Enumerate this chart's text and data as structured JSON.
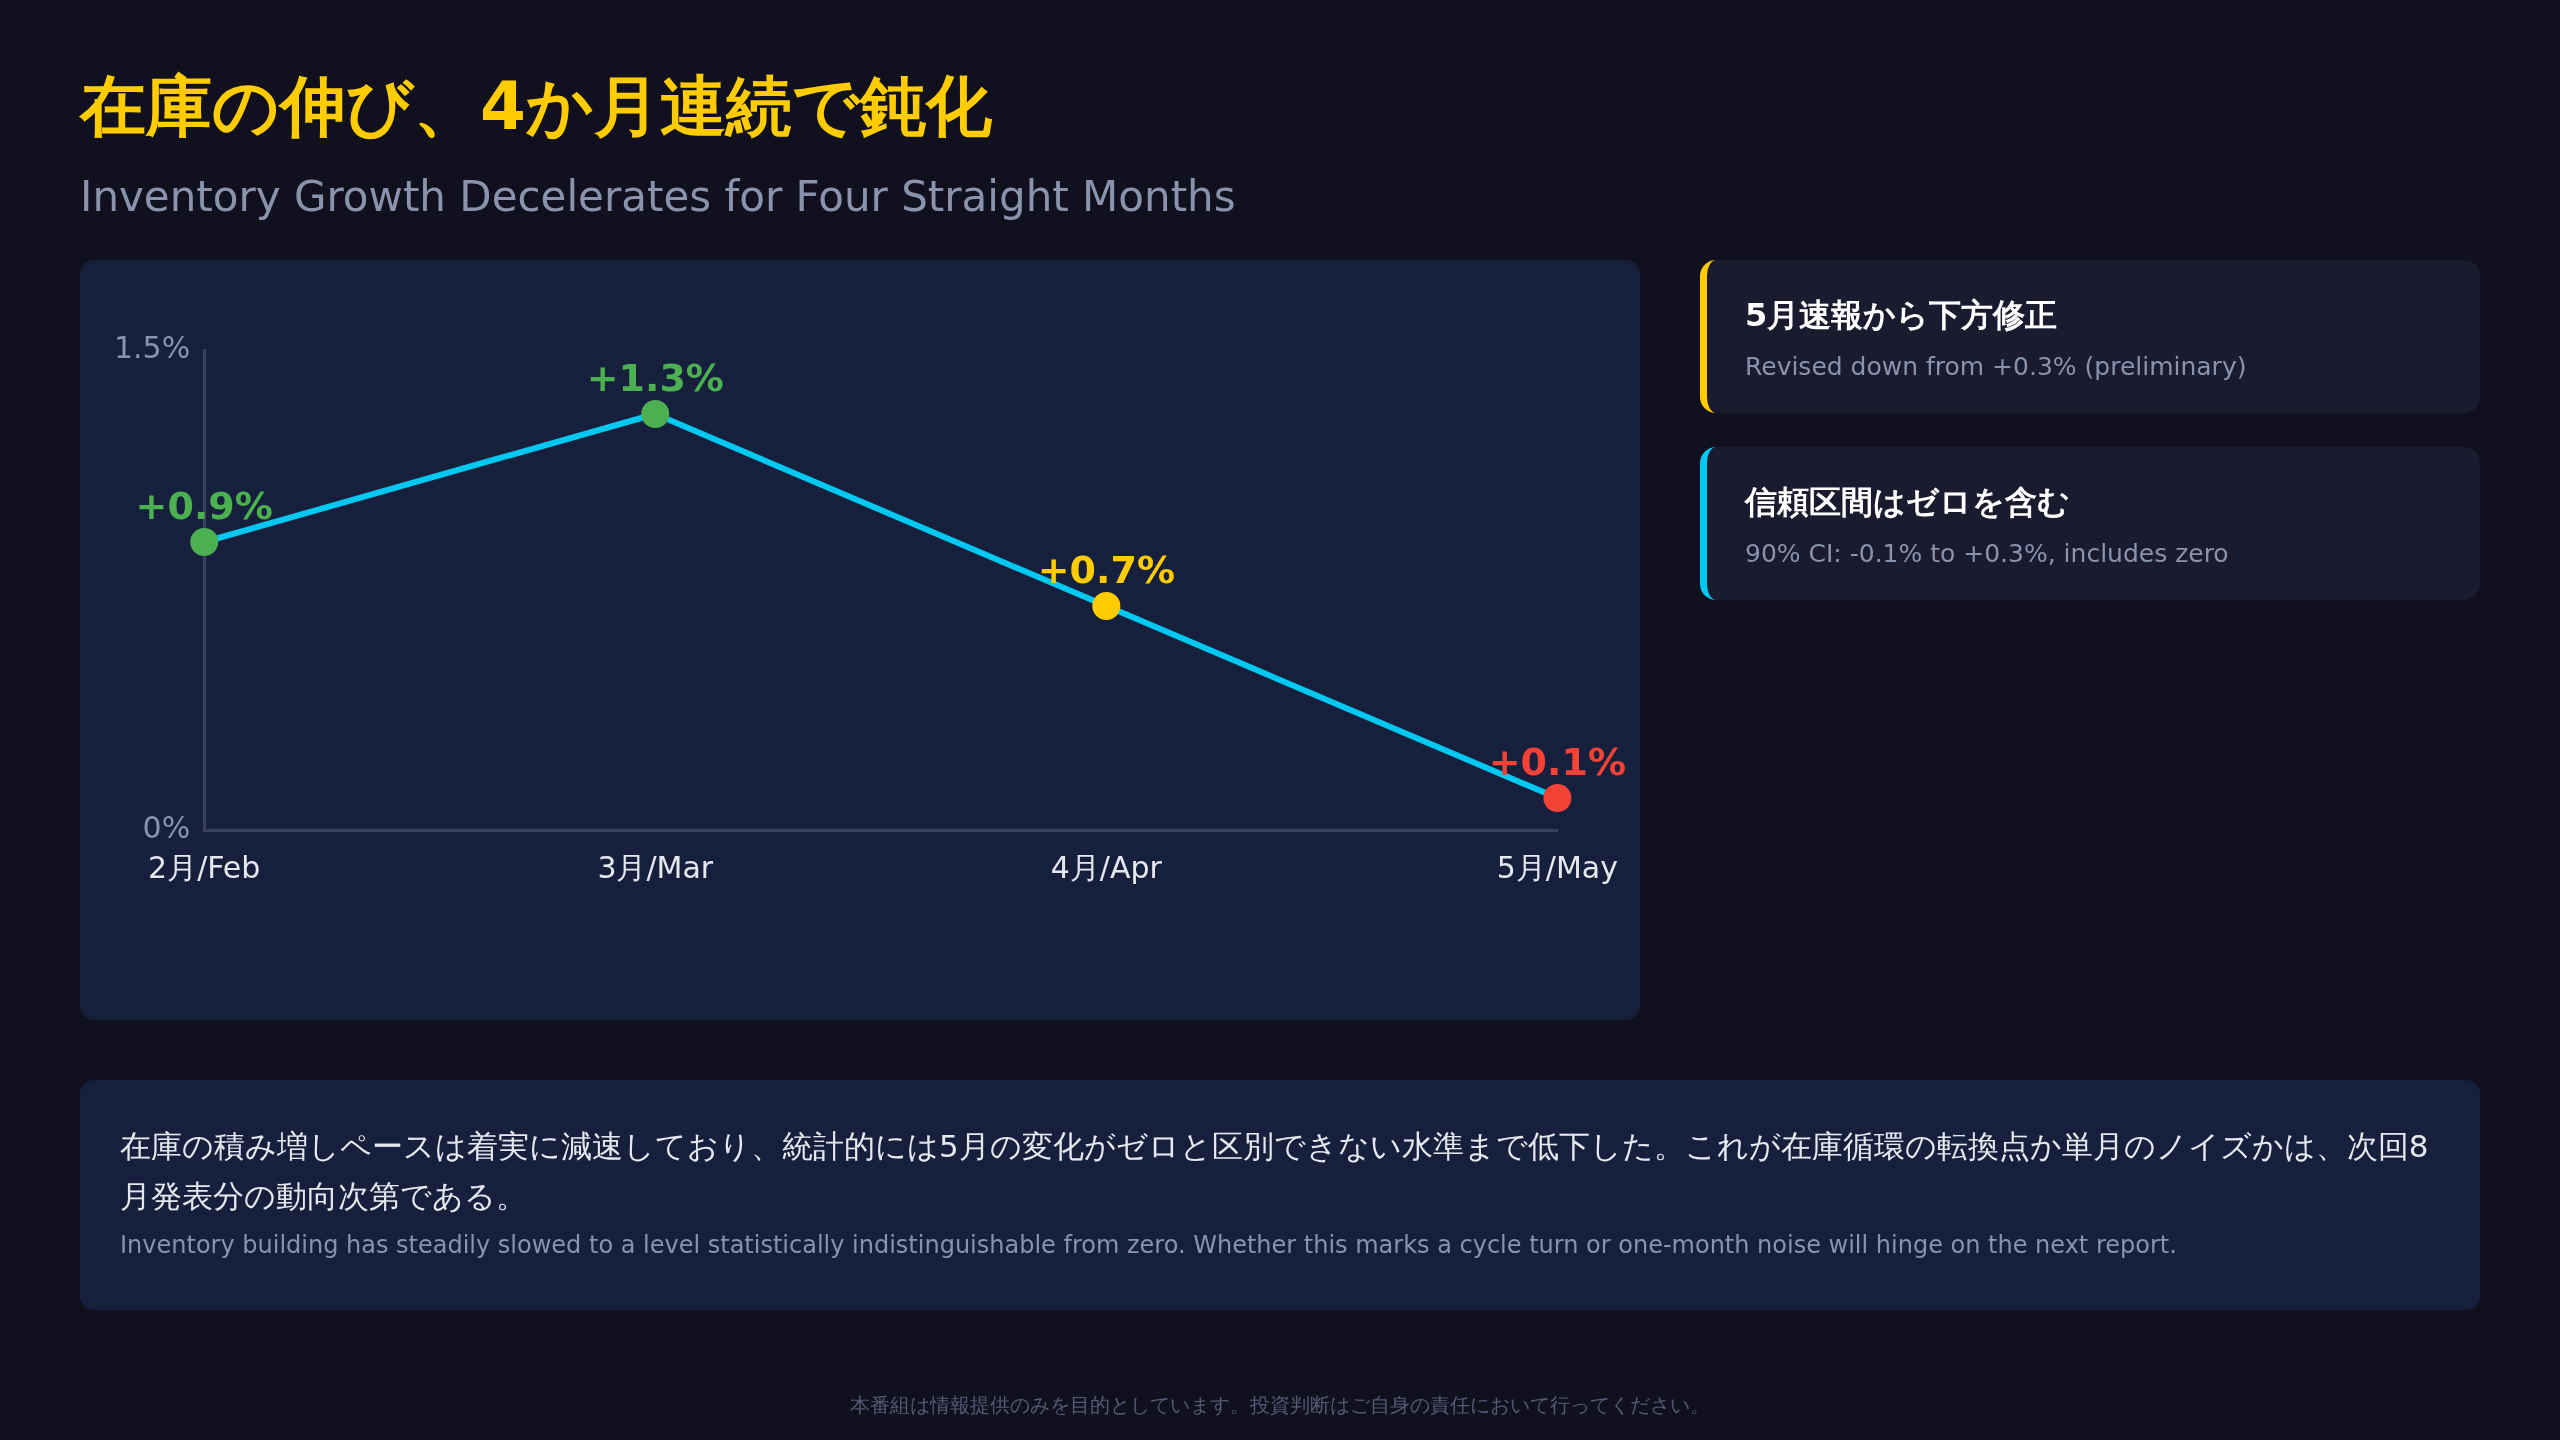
{
  "chart_data": {
    "type": "line",
    "title": "在庫の伸び、4か月連続で鈍化",
    "subtitle": "Inventory Growth Decelerates for Four Straight Months",
    "categories": [
      "2月/Feb",
      "3月/Mar",
      "4月/Apr",
      "5月/May"
    ],
    "series": [
      {
        "color": "#00c8f0",
        "colors": [
          "#4caf50",
          "#4caf50",
          "#ffcc00",
          "#f44336"
        ],
        "values": [
          0.9,
          1.3,
          0.7,
          0.1
        ],
        "value_labels": [
          "+0.9%",
          "+1.3%",
          "+0.7%",
          "+0.1%"
        ]
      }
    ],
    "ylim": [
      0,
      1.5
    ],
    "yticks": [
      {
        "value": 0,
        "label": "0%"
      },
      {
        "value": 1.5,
        "label": "1.5%"
      }
    ],
    "grid": false,
    "legend": false,
    "marker": "circle",
    "line_style": "solid",
    "annotations": [
      "5月速報から下方修正",
      "Revised down from +0.3% (preliminary)",
      "信頼区間はゼロを含む",
      "90% CI: -0.1% to +0.3%, includes zero",
      "在庫の積み増しペースは着実に減速しており、統計的には5月の変化がゼロと区別できない水準まで低下した。これが在庫循環の転換点か単月のノイズかは、次回8月発表分の動向次第である。",
      "Inventory building has steadily slowed to a level statistically indistinguishable from zero. Whether this marks a cycle turn or one-month noise will hinge on the next report.",
      "本番組は情報提供のみを目的としています。投資判断はご自身の責任において行ってください。"
    ]
  }
}
